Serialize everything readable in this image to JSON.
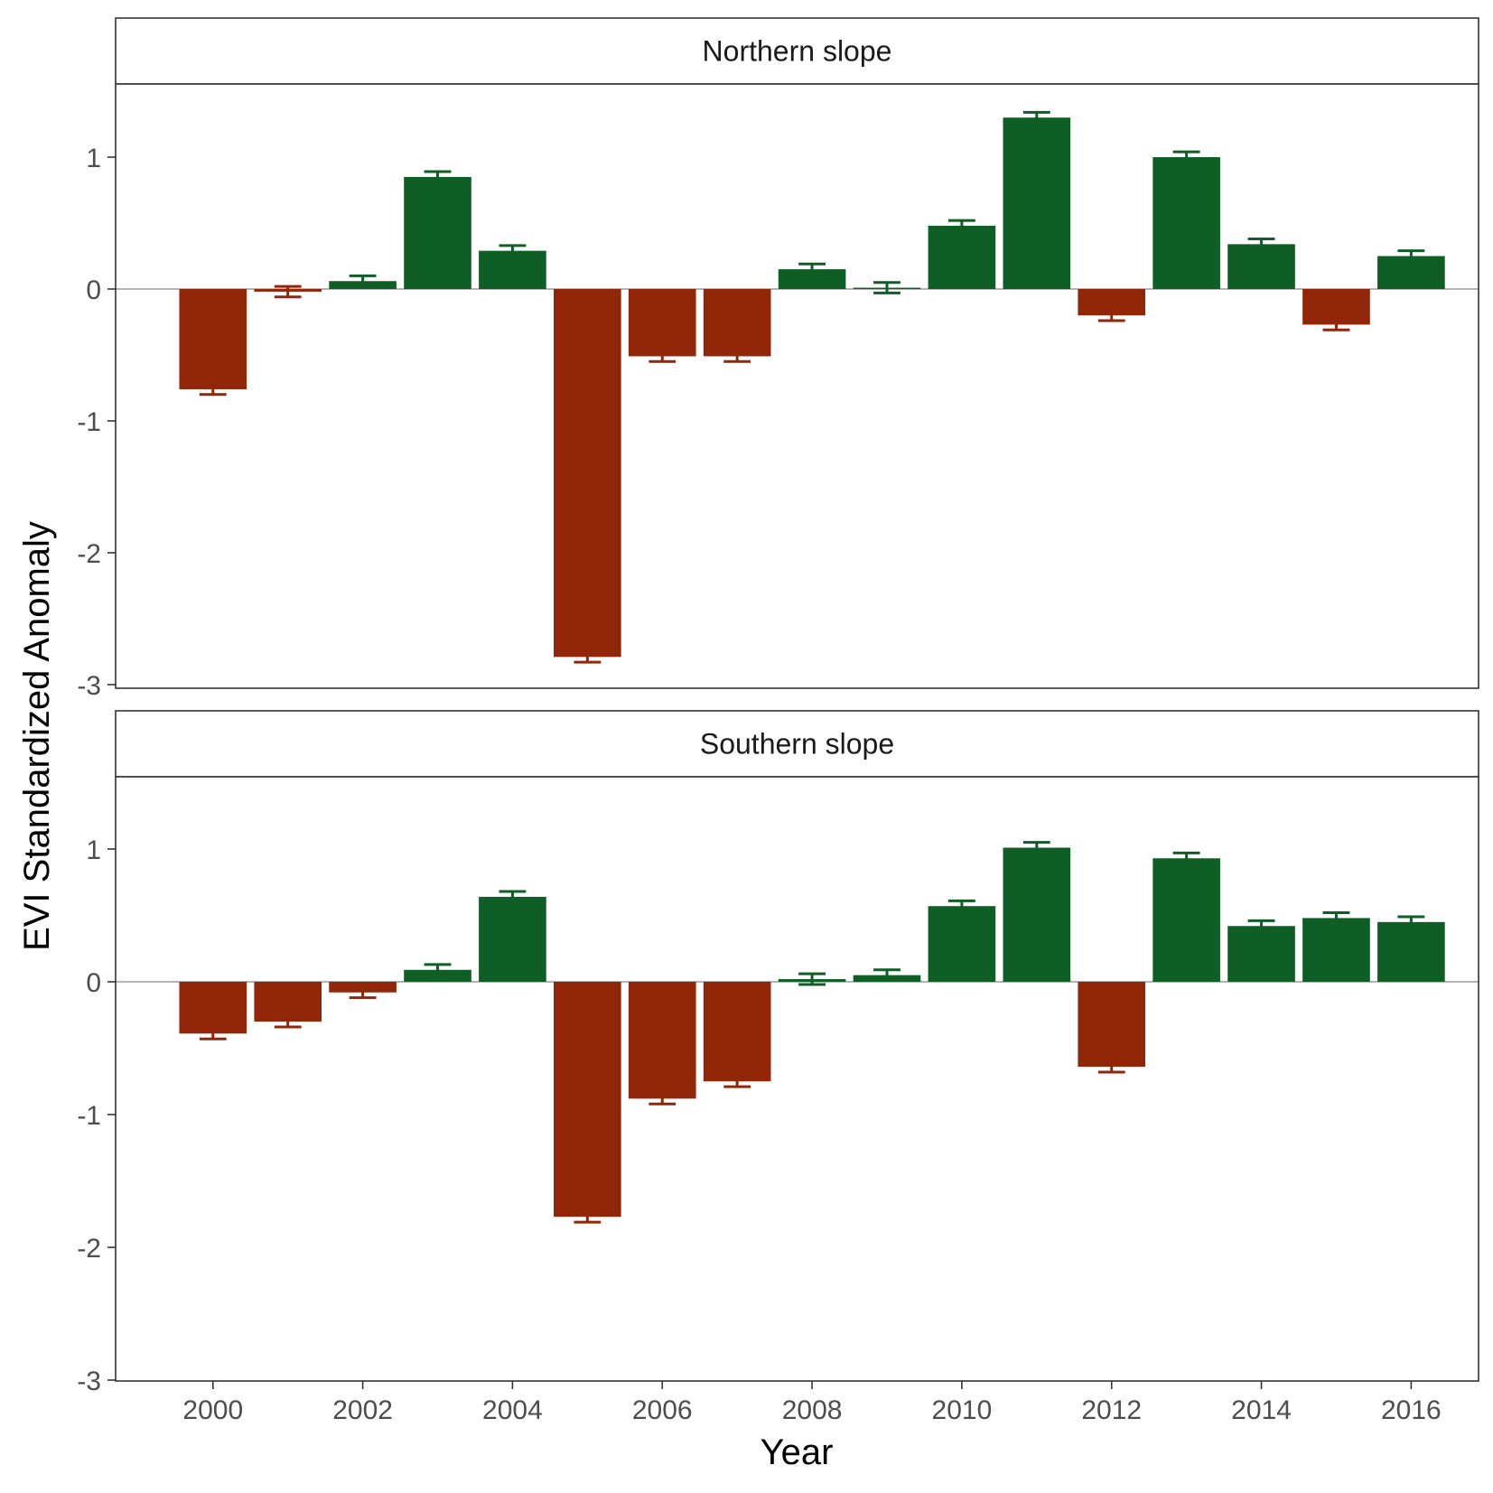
{
  "chart_data": {
    "type": "bar",
    "xlabel": "Year",
    "ylabel": "EVI Standardized Anomaly",
    "ylim": [
      -3,
      1.5
    ],
    "y_ticks": [
      1,
      0,
      -1,
      -2,
      -3
    ],
    "y_tick_labels": [
      "1",
      "0",
      "-1",
      "-2",
      "-3"
    ],
    "x_ticks": [
      2000,
      2002,
      2004,
      2006,
      2008,
      2010,
      2012,
      2014,
      2016
    ],
    "x_tick_labels": [
      "2000",
      "2002",
      "2004",
      "2006",
      "2008",
      "2010",
      "2012",
      "2014",
      "2016"
    ],
    "x": [
      2000,
      2001,
      2002,
      2003,
      2004,
      2005,
      2006,
      2007,
      2008,
      2009,
      2010,
      2011,
      2012,
      2013,
      2014,
      2015,
      2016
    ],
    "colors": {
      "positive": "#0f5e25",
      "negative": "#912608",
      "zero_line": "#b3b3b3"
    },
    "grid": false,
    "panels": [
      {
        "title": "Northern slope",
        "values": [
          -0.76,
          -0.02,
          0.06,
          0.85,
          0.29,
          -2.79,
          -0.51,
          -0.51,
          0.15,
          0.01,
          0.48,
          1.3,
          -0.2,
          1.0,
          0.34,
          -0.27,
          0.25
        ],
        "errors": [
          0.04,
          0.04,
          0.04,
          0.04,
          0.04,
          0.04,
          0.04,
          0.04,
          0.04,
          0.04,
          0.04,
          0.04,
          0.04,
          0.04,
          0.04,
          0.04,
          0.04
        ]
      },
      {
        "title": "Southern slope",
        "values": [
          -0.39,
          -0.3,
          -0.08,
          0.09,
          0.64,
          -1.77,
          -0.88,
          -0.75,
          0.02,
          0.05,
          0.57,
          1.01,
          -0.64,
          0.93,
          0.42,
          0.48,
          0.45
        ],
        "errors": [
          0.04,
          0.04,
          0.04,
          0.04,
          0.04,
          0.04,
          0.04,
          0.04,
          0.04,
          0.04,
          0.04,
          0.04,
          0.04,
          0.04,
          0.04,
          0.04,
          0.04
        ]
      }
    ]
  }
}
